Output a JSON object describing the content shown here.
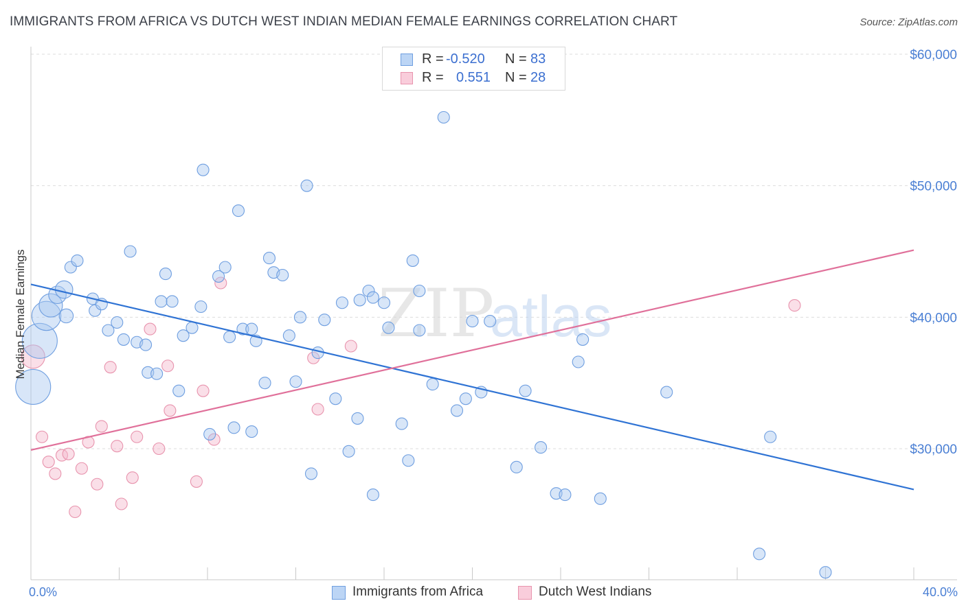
{
  "title": "IMMIGRANTS FROM AFRICA VS DUTCH WEST INDIAN MEDIAN FEMALE EARNINGS CORRELATION CHART",
  "source": "Source: ZipAtlas.com",
  "watermark": {
    "zip": "ZIP",
    "atlas": "atlas"
  },
  "legend": {
    "r_label": "R =",
    "n_label": "N =",
    "series1": {
      "r": "-0.520",
      "n": "83"
    },
    "series2": {
      "r": "0.551",
      "n": "28"
    }
  },
  "bottom_legend": {
    "series1": "Immigrants from Africa",
    "series2": "Dutch West Indians"
  },
  "colors": {
    "blue_fill": "#a9c8f0",
    "blue_stroke": "#6e9ee0",
    "blue_line": "#2f73d4",
    "pink_fill": "#f5b9cb",
    "pink_stroke": "#e893ad",
    "pink_line": "#e0709a",
    "tick_text": "#4a7fd4",
    "grid": "#dcdcdc"
  },
  "chart_data": {
    "type": "scatter",
    "title": "IMMIGRANTS FROM AFRICA VS DUTCH WEST INDIAN MEDIAN FEMALE EARNINGS CORRELATION CHART",
    "xlabel": "",
    "ylabel": "Median Female Earnings",
    "xlim": [
      0,
      40
    ],
    "ylim": [
      20000,
      62000
    ],
    "x_ticks": [
      0,
      4,
      8,
      12,
      16,
      20,
      24,
      28,
      32,
      36,
      40
    ],
    "x_tick_labels": {
      "0": "0.0%",
      "40": "40.0%"
    },
    "y_ticks": [
      30000,
      40000,
      50000,
      60000
    ],
    "y_tick_labels": [
      "$30,000",
      "$40,000",
      "$50,000",
      "$60,000"
    ],
    "series": [
      {
        "name": "Immigrants from Africa",
        "r": -0.52,
        "n": 83,
        "trend": [
          [
            0,
            42500
          ],
          [
            40,
            26900
          ]
        ],
        "points": [
          [
            0.1,
            34700,
            3
          ],
          [
            0.4,
            38200,
            3
          ],
          [
            0.7,
            40100,
            2.5
          ],
          [
            0.9,
            40900,
            2
          ],
          [
            1.2,
            41700,
            1.5
          ],
          [
            1.5,
            42100,
            1.5
          ],
          [
            1.6,
            40100,
            1.2
          ],
          [
            1.8,
            43800,
            1
          ],
          [
            2.1,
            44300,
            1
          ],
          [
            2.8,
            41400,
            1
          ],
          [
            2.9,
            40500,
            1
          ],
          [
            3.2,
            41000,
            1
          ],
          [
            3.5,
            39000,
            1
          ],
          [
            3.9,
            39600,
            1
          ],
          [
            4.2,
            38300,
            1
          ],
          [
            4.5,
            45000,
            1
          ],
          [
            4.8,
            38100,
            1
          ],
          [
            5.2,
            37900,
            1
          ],
          [
            5.3,
            35800,
            1
          ],
          [
            5.7,
            35700,
            1
          ],
          [
            5.9,
            41200,
            1
          ],
          [
            6.1,
            43300,
            1
          ],
          [
            6.4,
            41200,
            1
          ],
          [
            6.7,
            34400,
            1
          ],
          [
            6.9,
            38600,
            1
          ],
          [
            7.3,
            39200,
            1
          ],
          [
            7.7,
            40800,
            1
          ],
          [
            7.8,
            51200,
            1
          ],
          [
            8.1,
            31100,
            1
          ],
          [
            8.5,
            43100,
            1
          ],
          [
            8.8,
            43800,
            1
          ],
          [
            9.0,
            38500,
            1
          ],
          [
            9.2,
            31600,
            1
          ],
          [
            9.4,
            48100,
            1
          ],
          [
            9.6,
            39100,
            1
          ],
          [
            10.0,
            31300,
            1
          ],
          [
            10.2,
            38200,
            1
          ],
          [
            10.6,
            35000,
            1
          ],
          [
            10.8,
            44500,
            1
          ],
          [
            11.0,
            43400,
            1
          ],
          [
            11.4,
            43200,
            1
          ],
          [
            11.7,
            38600,
            1
          ],
          [
            12.0,
            35100,
            1
          ],
          [
            12.2,
            40000,
            1
          ],
          [
            12.5,
            50000,
            1
          ],
          [
            12.7,
            28100,
            1
          ],
          [
            13.0,
            37300,
            1
          ],
          [
            13.3,
            39800,
            1
          ],
          [
            13.8,
            33800,
            1
          ],
          [
            14.1,
            41100,
            1
          ],
          [
            14.4,
            29800,
            1
          ],
          [
            14.8,
            32300,
            1
          ],
          [
            14.9,
            41300,
            1
          ],
          [
            15.3,
            42000,
            1
          ],
          [
            15.5,
            41500,
            1
          ],
          [
            15.5,
            26500,
            1
          ],
          [
            16.0,
            41100,
            1
          ],
          [
            16.2,
            39200,
            1
          ],
          [
            16.8,
            31900,
            1
          ],
          [
            17.1,
            29100,
            1
          ],
          [
            17.3,
            44300,
            1
          ],
          [
            17.6,
            39000,
            1
          ],
          [
            17.6,
            42000,
            1
          ],
          [
            18.2,
            34900,
            1
          ],
          [
            18.7,
            55200,
            1
          ],
          [
            19.3,
            32900,
            1
          ],
          [
            19.7,
            33800,
            1
          ],
          [
            20.0,
            39700,
            1
          ],
          [
            20.4,
            34300,
            1
          ],
          [
            20.8,
            39700,
            1
          ],
          [
            22.0,
            28600,
            1
          ],
          [
            22.4,
            34400,
            1
          ],
          [
            23.1,
            30100,
            1
          ],
          [
            23.8,
            26600,
            1
          ],
          [
            24.2,
            26500,
            1
          ],
          [
            24.8,
            36600,
            1
          ],
          [
            25.0,
            38300,
            1
          ],
          [
            25.8,
            26200,
            1
          ],
          [
            28.8,
            34300,
            1
          ],
          [
            33.5,
            30900,
            1
          ],
          [
            33.0,
            22000,
            1
          ],
          [
            36.0,
            20600,
            1
          ],
          [
            10.0,
            39100,
            1
          ]
        ]
      },
      {
        "name": "Dutch West Indians",
        "r": 0.551,
        "n": 28,
        "trend": [
          [
            0,
            29900
          ],
          [
            40,
            45100
          ]
        ],
        "points": [
          [
            0.1,
            37000,
            2
          ],
          [
            0.5,
            30900,
            1
          ],
          [
            0.8,
            29000,
            1
          ],
          [
            1.1,
            28100,
            1
          ],
          [
            1.4,
            29500,
            1
          ],
          [
            1.7,
            29600,
            1
          ],
          [
            2.0,
            25200,
            1
          ],
          [
            2.3,
            28500,
            1
          ],
          [
            2.6,
            30500,
            1
          ],
          [
            3.0,
            27300,
            1
          ],
          [
            3.2,
            31700,
            1
          ],
          [
            3.6,
            36200,
            1
          ],
          [
            3.9,
            30200,
            1
          ],
          [
            4.1,
            25800,
            1
          ],
          [
            4.6,
            27800,
            1
          ],
          [
            4.8,
            30900,
            1
          ],
          [
            5.4,
            39100,
            1
          ],
          [
            5.8,
            30000,
            1
          ],
          [
            6.2,
            36300,
            1
          ],
          [
            6.3,
            32900,
            1
          ],
          [
            7.5,
            27500,
            1
          ],
          [
            7.8,
            34400,
            1
          ],
          [
            8.3,
            30700,
            1
          ],
          [
            8.6,
            42600,
            1
          ],
          [
            12.8,
            36900,
            1
          ],
          [
            13.0,
            33000,
            1
          ],
          [
            14.5,
            37800,
            1
          ],
          [
            34.6,
            40900,
            1
          ]
        ]
      }
    ]
  }
}
